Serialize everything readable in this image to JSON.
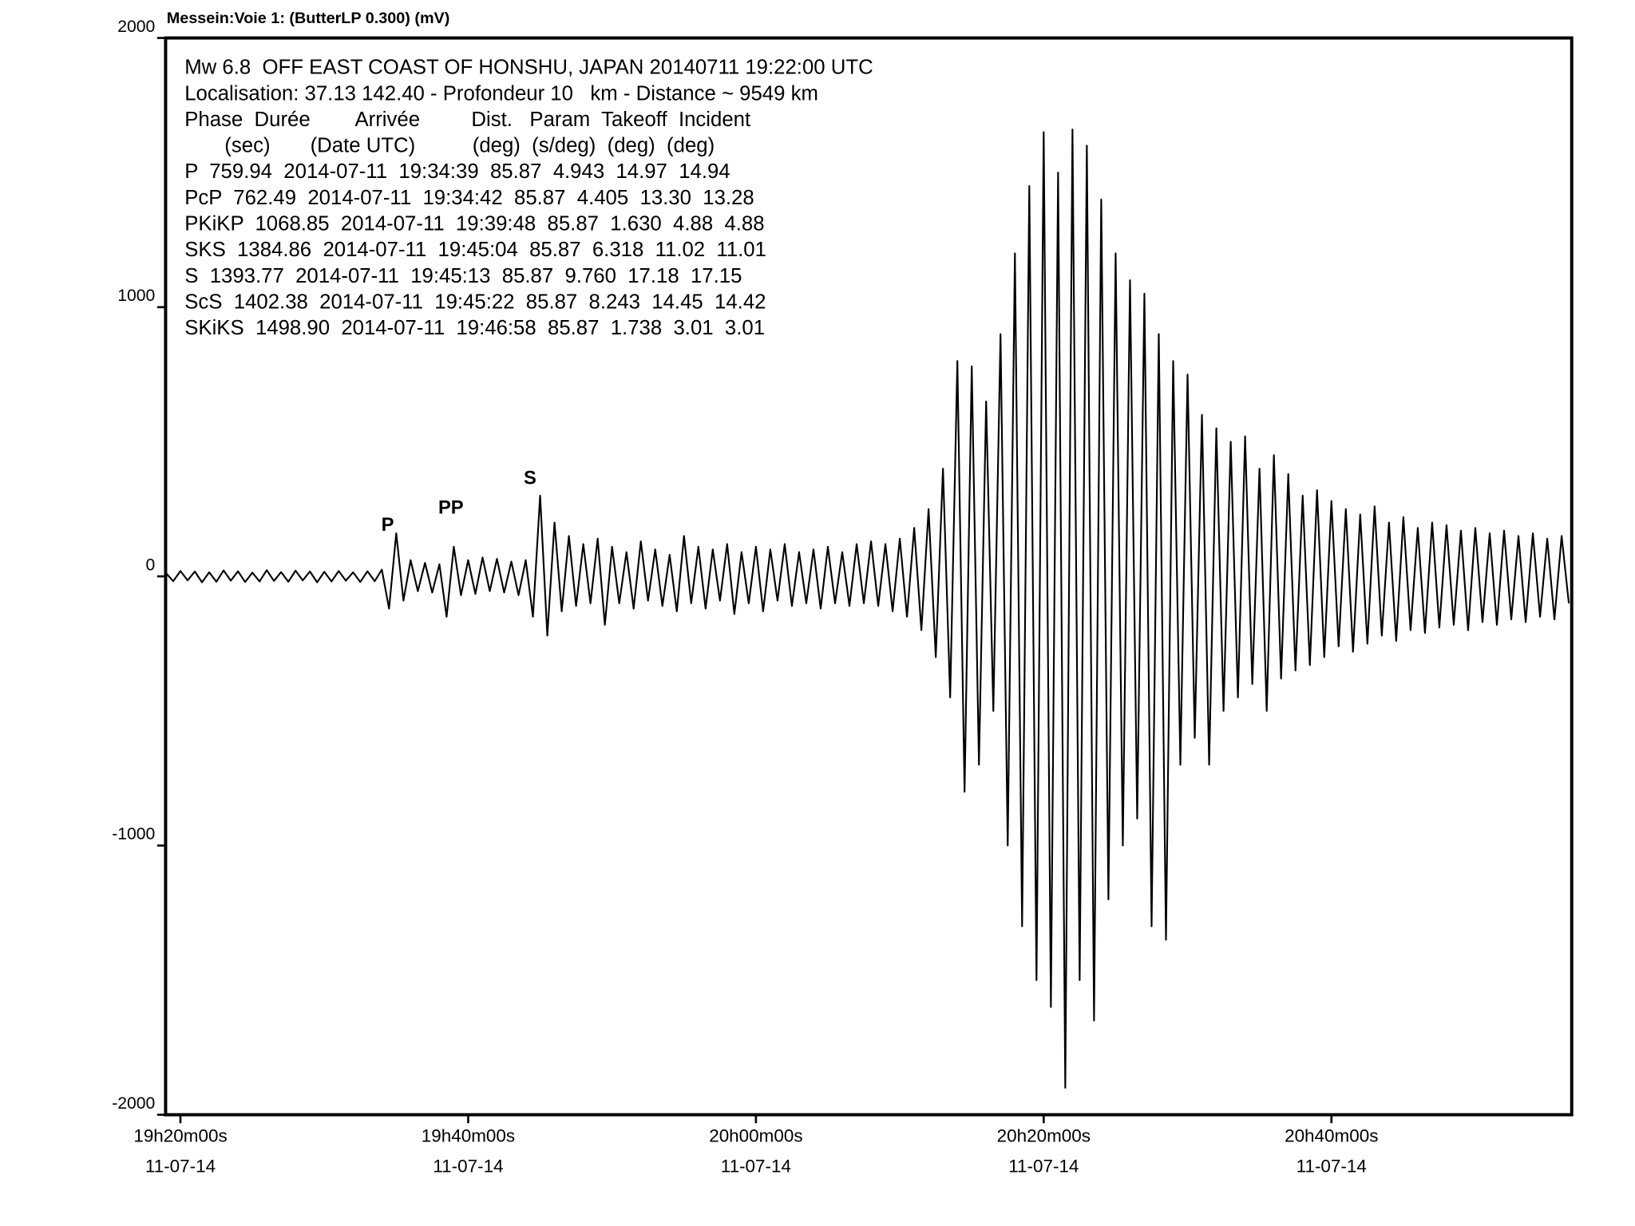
{
  "chart_data": {
    "type": "line",
    "title": "Messein:Voie 1: (ButterLP 0.300) (mV)",
    "info_lines": [
      "Mw 6.8  OFF EAST COAST OF HONSHU, JAPAN 20140711 19:22:00 UTC",
      "Localisation: 37.13 142.40 - Profondeur 10   km - Distance ~ 9549 km",
      "Phase  Durée        Arrivée         Dist.   Param  Takeoff  Incident",
      "       (sec)       (Date UTC)          (deg)  (s/deg)  (deg)  (deg)",
      "P  759.94  2014-07-11  19:34:39  85.87  4.943  14.97  14.94",
      "PcP  762.49  2014-07-11  19:34:42  85.87  4.405  13.30  13.28",
      "PKiKP  1068.85  2014-07-11  19:39:48  85.87  1.630  4.88  4.88",
      "SKS  1384.86  2014-07-11  19:45:04  85.87  6.318  11.02  11.01",
      "S  1393.77  2014-07-11  19:45:13  85.87  9.760  17.18  17.15",
      "ScS  1402.38  2014-07-11  19:45:22  85.87  8.243  14.45  14.42",
      "SKiKS  1498.90  2014-07-11  19:46:58  85.87  1.738  3.01  3.01"
    ],
    "annotations": [
      {
        "text": "P",
        "x": 14.4,
        "y": 188
      },
      {
        "text": "PP",
        "x": 18.8,
        "y": 251
      },
      {
        "text": "S",
        "x": 24.3,
        "y": 361
      }
    ],
    "color": "#000000",
    "xlim": [
      -1.03,
      96.7
    ],
    "ylim": [
      -2000,
      2000
    ],
    "xticks": [
      {
        "value": 0,
        "label": "19h20m00s"
      },
      {
        "value": 20,
        "label": "19h40m00s"
      },
      {
        "value": 40,
        "label": "20h00m00s"
      },
      {
        "value": 60,
        "label": "20h20m00s"
      },
      {
        "value": 80,
        "label": "20h40m00s"
      }
    ],
    "xtick_dates": [
      "11-07-14",
      "11-07-14",
      "11-07-14",
      "11-07-14",
      "11-07-14"
    ],
    "yticks": [
      -2000,
      -1000,
      0,
      1000,
      2000
    ],
    "grid": false,
    "x": [
      -1,
      -0.5,
      0,
      0.5,
      1,
      1.5,
      2,
      2.5,
      3,
      3.5,
      4,
      4.5,
      5,
      5.5,
      6,
      6.5,
      7,
      7.5,
      8,
      8.5,
      9,
      9.5,
      10,
      10.5,
      11,
      11.5,
      12,
      12.5,
      13,
      13.5,
      14,
      14.5,
      15,
      15.5,
      16,
      16.5,
      17,
      17.5,
      18,
      18.5,
      19,
      19.5,
      20,
      20.5,
      21,
      21.5,
      22,
      22.5,
      23,
      23.5,
      24,
      24.5,
      25,
      25.5,
      26,
      26.5,
      27,
      27.5,
      28,
      28.5,
      29,
      29.5,
      30,
      30.5,
      31,
      31.5,
      32,
      32.5,
      33,
      33.5,
      34,
      34.5,
      35,
      35.5,
      36,
      36.5,
      37,
      37.5,
      38,
      38.5,
      39,
      39.5,
      40,
      40.5,
      41,
      41.5,
      42,
      42.5,
      43,
      43.5,
      44,
      44.5,
      45,
      45.5,
      46,
      46.5,
      47,
      47.5,
      48,
      48.5,
      49,
      49.5,
      50,
      50.5,
      51,
      51.5,
      52,
      52.5,
      53,
      53.5,
      54,
      54.5,
      55,
      55.5,
      56,
      56.5,
      57,
      57.5,
      58,
      58.5,
      59,
      59.5,
      60,
      60.5,
      61,
      61.5,
      62,
      62.5,
      63,
      63.5,
      64,
      64.5,
      65,
      65.5,
      66,
      66.5,
      67,
      67.5,
      68,
      68.5,
      69,
      69.5,
      70,
      70.5,
      71,
      71.5,
      72,
      72.5,
      73,
      73.5,
      74,
      74.5,
      75,
      75.5,
      76,
      76.5,
      77,
      77.5,
      78,
      78.5,
      79,
      79.5,
      80,
      80.5,
      81,
      81.5,
      82,
      82.5,
      83,
      83.5,
      84,
      84.5,
      85,
      85.5,
      86,
      86.5,
      87,
      87.5,
      88,
      88.5,
      89,
      89.5,
      90,
      90.5,
      91,
      91.5,
      92,
      92.5,
      93,
      93.5,
      94,
      94.5,
      95,
      95.5,
      96,
      96.5
    ],
    "values": [
      12,
      -18,
      20,
      -15,
      18,
      -22,
      15,
      -20,
      22,
      -16,
      19,
      -21,
      14,
      -19,
      23,
      -17,
      16,
      -20,
      21,
      -15,
      18,
      -22,
      17,
      -19,
      20,
      -16,
      15,
      -21,
      19,
      -18,
      25,
      -120,
      160,
      -90,
      60,
      -55,
      50,
      -60,
      45,
      -150,
      110,
      -70,
      60,
      -65,
      70,
      -55,
      65,
      -60,
      55,
      -70,
      60,
      -150,
      300,
      -220,
      200,
      -130,
      150,
      -110,
      120,
      -100,
      140,
      -180,
      110,
      -100,
      90,
      -120,
      130,
      -90,
      100,
      -110,
      80,
      -130,
      150,
      -100,
      110,
      -120,
      100,
      -90,
      120,
      -140,
      90,
      -100,
      110,
      -130,
      100,
      -90,
      120,
      -110,
      90,
      -100,
      100,
      -120,
      110,
      -100,
      90,
      -110,
      120,
      -100,
      130,
      -110,
      120,
      -130,
      140,
      -150,
      180,
      -200,
      250,
      -300,
      400,
      -450,
      800,
      -800,
      780,
      -700,
      650,
      -500,
      900,
      -1000,
      1200,
      -1300,
      1450,
      -1500,
      1650,
      -1600,
      1500,
      -1900,
      1660,
      -1500,
      1600,
      -1650,
      1400,
      -1200,
      1200,
      -1000,
      1100,
      -900,
      1050,
      -1300,
      900,
      -1350,
      800,
      -700,
      750,
      -600,
      600,
      -700,
      550,
      -500,
      500,
      -450,
      520,
      -400,
      400,
      -500,
      450,
      -380,
      380,
      -350,
      300,
      -330,
      320,
      -300,
      280,
      -260,
      250,
      -280,
      230,
      -250,
      260,
      -220,
      200,
      -240,
      220,
      -200,
      180,
      -210,
      200,
      -190,
      190,
      -180,
      170,
      -200,
      180,
      -170,
      160,
      -180,
      170,
      -160,
      150,
      -170,
      160,
      -150,
      140,
      -160,
      150,
      -100
    ]
  }
}
